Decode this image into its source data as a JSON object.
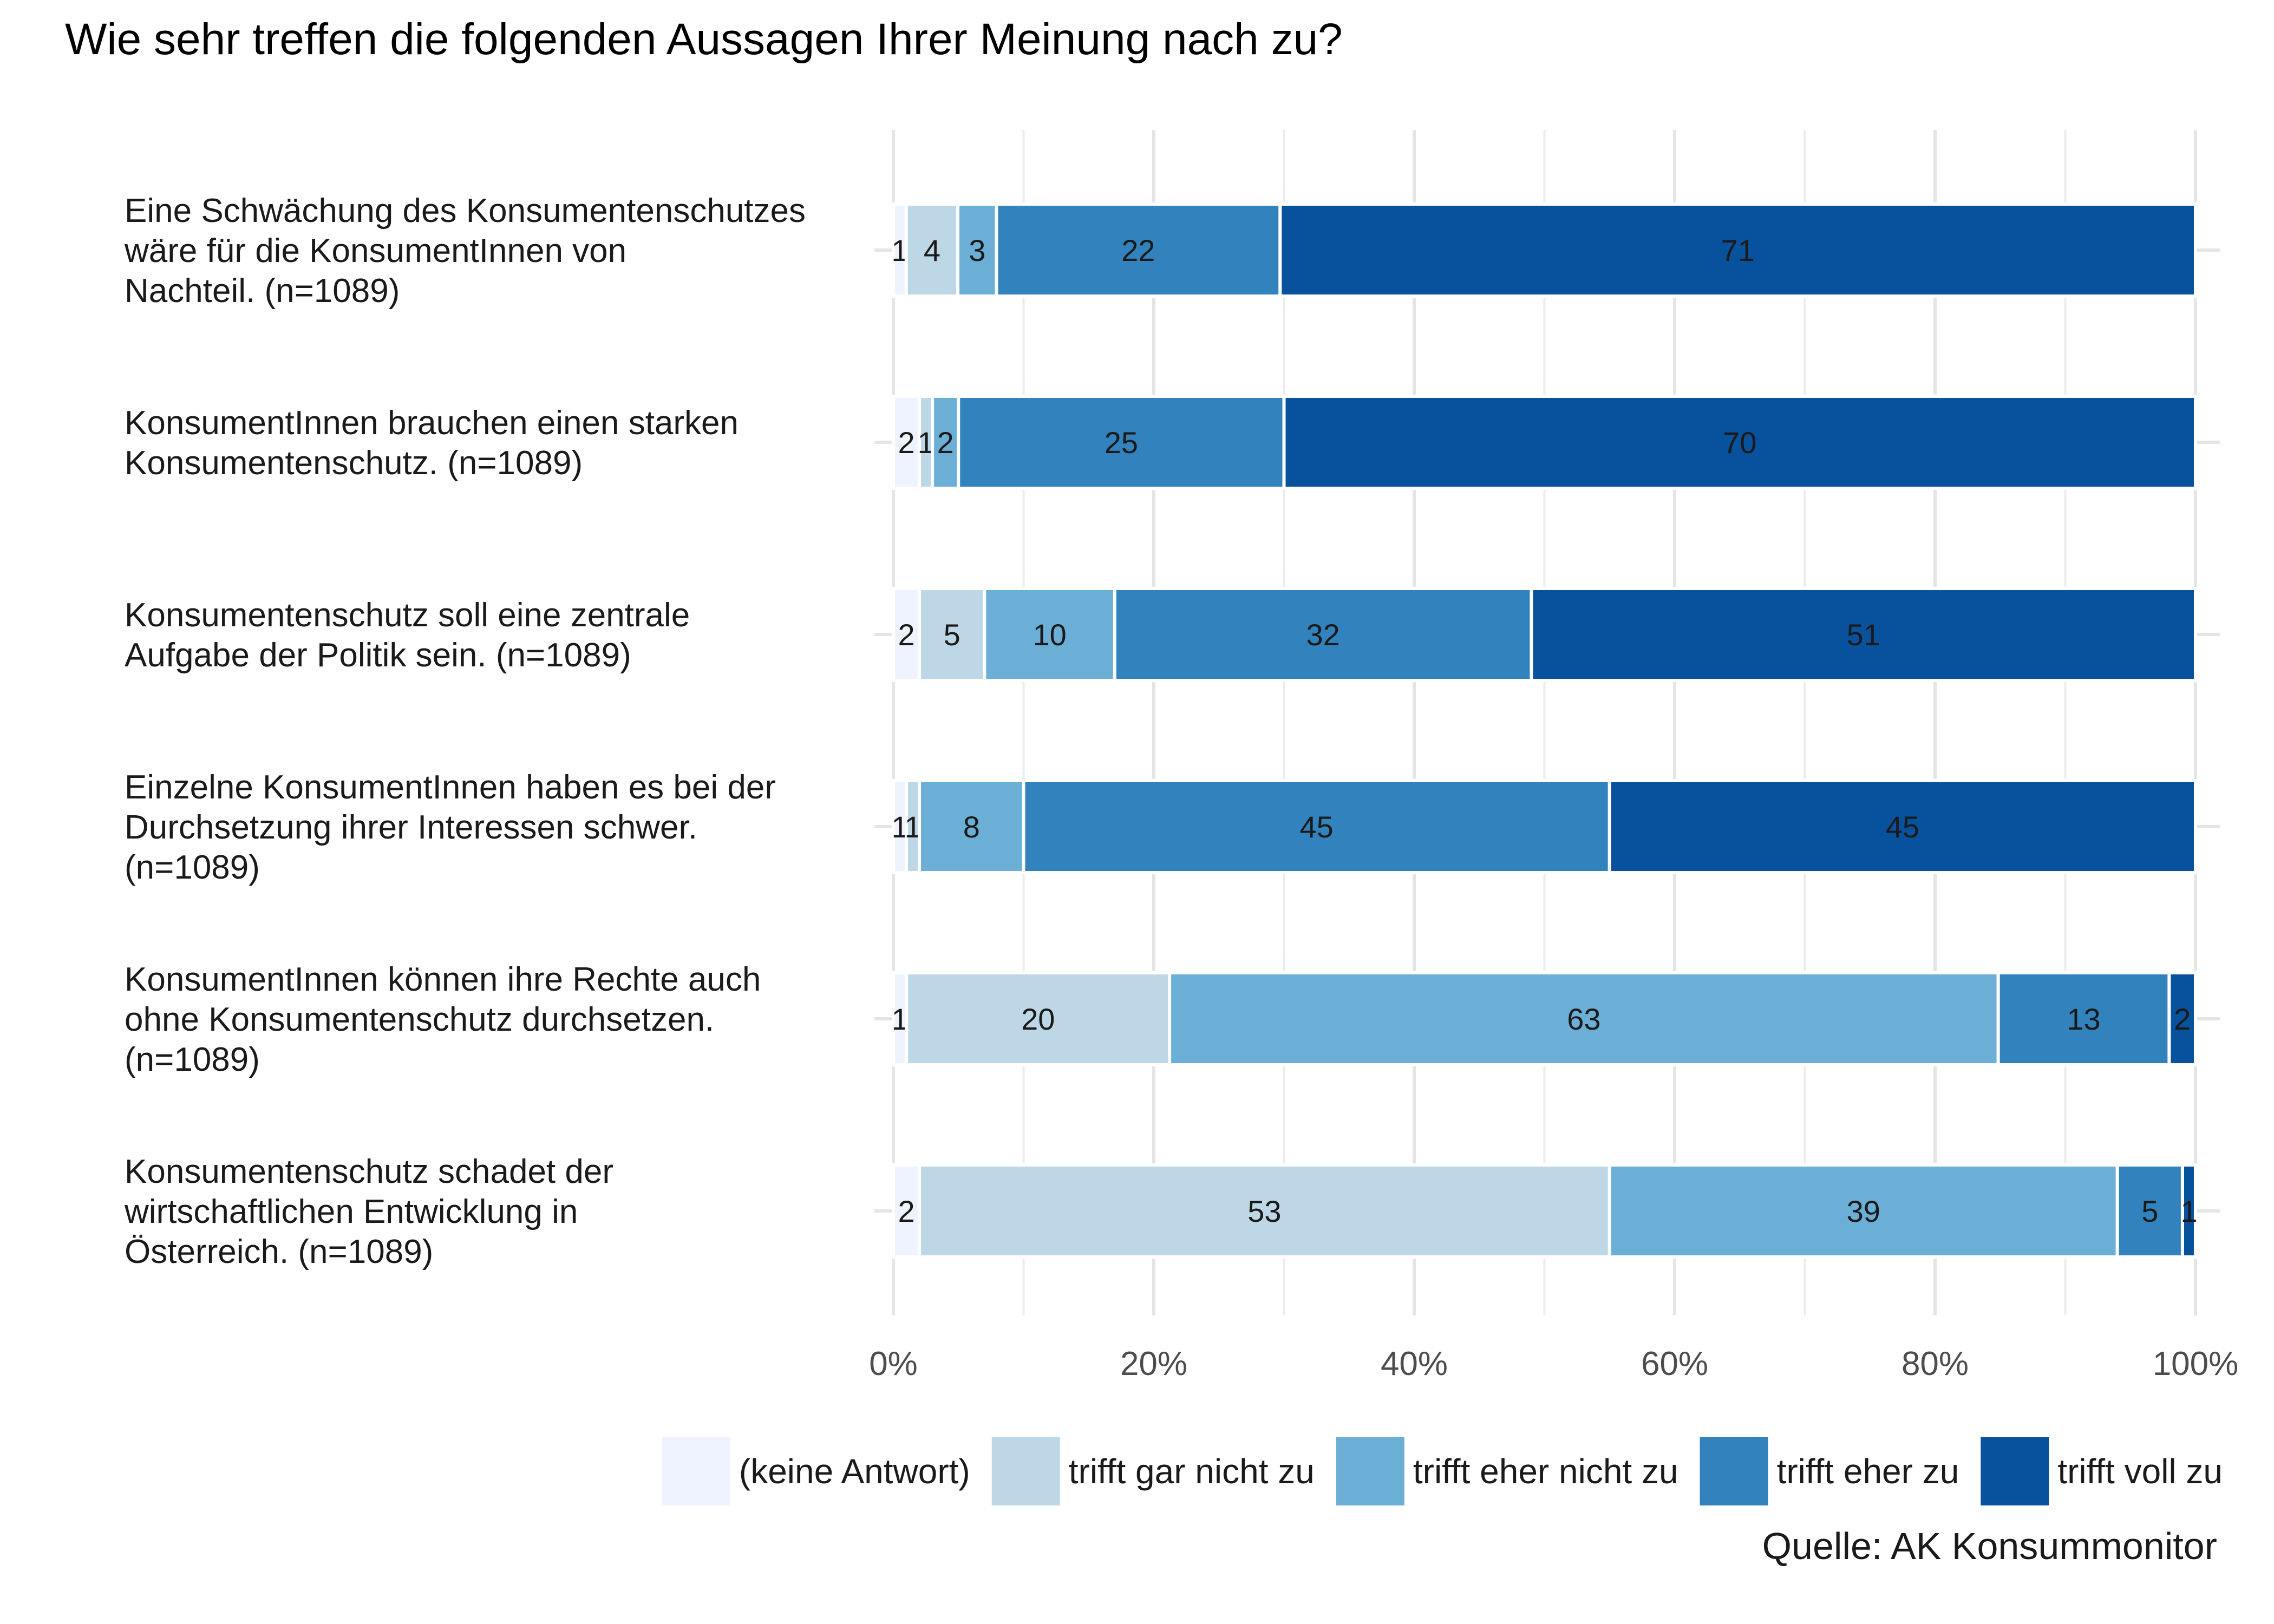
{
  "chart_data": {
    "type": "bar",
    "orientation": "horizontal",
    "stacked": true,
    "title": "Wie sehr treffen die folgenden Aussagen Ihrer Meinung nach zu?",
    "source": "Quelle: AK Konsummonitor",
    "categories": [
      [
        "Eine Schwächung des Konsumentenschutzes",
        "wäre für die KonsumentInnen von",
        "Nachteil. (n=1089)"
      ],
      [
        "KonsumentInnen brauchen einen starken",
        "Konsumentenschutz. (n=1089)"
      ],
      [
        "Konsumentenschutz soll eine zentrale",
        "Aufgabe der Politik sein. (n=1089)"
      ],
      [
        "Einzelne KonsumentInnen haben es bei der",
        "Durchsetzung ihrer Interessen schwer.",
        "(n=1089)"
      ],
      [
        "KonsumentInnen können ihre Rechte auch",
        "ohne Konsumentenschutz durchsetzen.",
        "(n=1089)"
      ],
      [
        "Konsumentenschutz schadet der",
        "wirtschaftlichen Entwicklung in",
        "Österreich. (n=1089)"
      ]
    ],
    "series": [
      {
        "name": "(keine Antwort)",
        "color": "#eff3ff",
        "values": [
          1,
          2,
          2,
          1,
          1,
          2
        ]
      },
      {
        "name": "trifft gar nicht zu",
        "color": "#bdd7e7",
        "values": [
          4,
          1,
          5,
          1,
          20,
          53
        ]
      },
      {
        "name": "trifft eher nicht zu",
        "color": "#6baed6",
        "values": [
          3,
          2,
          10,
          8,
          63,
          39
        ]
      },
      {
        "name": "trifft eher zu",
        "color": "#3182bd",
        "values": [
          22,
          25,
          32,
          45,
          13,
          5
        ]
      },
      {
        "name": "trifft voll zu",
        "color": "#08519c",
        "values": [
          71,
          70,
          51,
          45,
          2,
          1
        ]
      }
    ],
    "xlim": [
      0,
      100
    ],
    "xticks": [
      "0%",
      "20%",
      "40%",
      "60%",
      "80%",
      "100%"
    ],
    "grid": true,
    "legend_position": "bottom-right"
  }
}
